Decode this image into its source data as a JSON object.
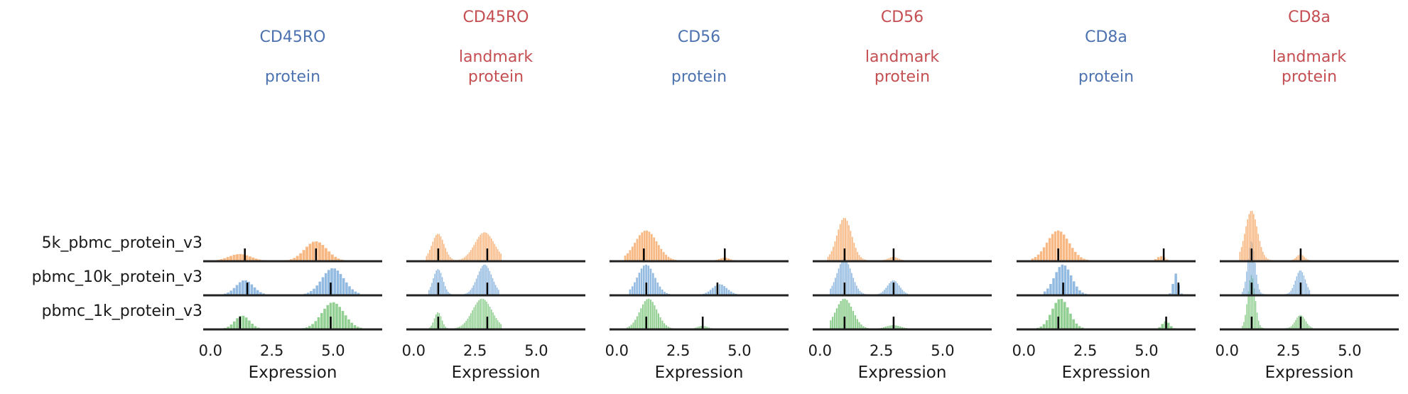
{
  "chart_data": {
    "type": "histogram-ridgeline",
    "colors": {
      "protein": "#4c72b0",
      "landmark": "#c44e52",
      "orange": "#f5a05a",
      "blue": "#6fa3d6",
      "green": "#6dbf6d",
      "marker": "#000000",
      "axis": "#222222"
    },
    "rows": [
      "5k_pbmc_protein_v3",
      "pbmc_10k_protein_v3",
      "pbmc_1k_protein_v3"
    ],
    "xticks": [
      "0.0",
      "2.5",
      "5.0"
    ],
    "xtick_values": [
      0,
      2.5,
      5
    ],
    "xlim": [
      -0.3,
      7.0
    ],
    "xlabel": "Expression",
    "panels": [
      {
        "title": "CD45RO\n\nprotein",
        "kind": "protein",
        "peaks": [
          [
            [
              1.2,
              0.45,
              0.35
            ],
            [
              4.3,
              0.45,
              1.0
            ]
          ],
          [
            [
              1.4,
              0.35,
              0.55
            ],
            [
              5.0,
              0.45,
              1.0
            ]
          ],
          [
            [
              1.3,
              0.3,
              0.5
            ],
            [
              5.0,
              0.45,
              1.0
            ]
          ]
        ],
        "ranges": [
          [
            0,
            6.2
          ],
          [
            0.3,
            6.1
          ],
          [
            0.3,
            6.2
          ]
        ],
        "heights": [
          0.55,
          0.75,
          0.75
        ],
        "markers": [
          [
            1.4,
            4.3
          ],
          [
            1.5,
            4.9
          ],
          [
            1.2,
            4.9
          ]
        ]
      },
      {
        "title": "CD45RO\n\nlandmark\nprotein",
        "kind": "landmark",
        "peaks": [
          [
            [
              1.0,
              0.25,
              0.95
            ],
            [
              2.9,
              0.4,
              1.0
            ]
          ],
          [
            [
              1.0,
              0.2,
              0.85
            ],
            [
              2.9,
              0.3,
              1.0
            ]
          ],
          [
            [
              1.0,
              0.15,
              0.55
            ],
            [
              2.8,
              0.4,
              1.0
            ]
          ]
        ],
        "ranges": [
          [
            0.5,
            3.6
          ],
          [
            0.6,
            3.5
          ],
          [
            0.5,
            3.6
          ]
        ],
        "heights": [
          0.8,
          0.85,
          0.85
        ],
        "markers": [
          [
            1.0,
            3.0
          ],
          [
            1.0,
            3.0
          ],
          [
            1.0,
            3.0
          ]
        ]
      },
      {
        "title": "CD56\n\nprotein",
        "kind": "protein",
        "peaks": [
          [
            [
              1.2,
              0.45,
              1.0
            ],
            [
              4.4,
              0.2,
              0.1
            ]
          ],
          [
            [
              1.2,
              0.35,
              1.0
            ],
            [
              4.2,
              0.3,
              0.35
            ]
          ],
          [
            [
              1.3,
              0.35,
              1.0
            ],
            [
              3.5,
              0.2,
              0.1
            ]
          ]
        ],
        "ranges": [
          [
            0.3,
            5.0
          ],
          [
            0.5,
            5.0
          ],
          [
            0.4,
            4.2
          ]
        ],
        "heights": [
          0.85,
          0.85,
          0.85
        ],
        "markers": [
          [
            1.1,
            4.4
          ],
          [
            1.2,
            4.1
          ],
          [
            1.2,
            3.5
          ]
        ]
      },
      {
        "title": "CD56\n\nlandmark\nprotein",
        "kind": "landmark",
        "peaks": [
          [
            [
              1.0,
              0.3,
              1.0
            ],
            [
              3.0,
              0.2,
              0.08
            ]
          ],
          [
            [
              1.0,
              0.3,
              1.0
            ],
            [
              3.0,
              0.25,
              0.4
            ]
          ],
          [
            [
              1.0,
              0.35,
              1.0
            ],
            [
              3.0,
              0.3,
              0.12
            ]
          ]
        ],
        "ranges": [
          [
            0.3,
            3.7
          ],
          [
            0.4,
            3.6
          ],
          [
            0.4,
            4.4
          ]
        ],
        "heights": [
          1.2,
          1.0,
          0.85
        ],
        "markers": [
          [
            1.0,
            3.0
          ],
          [
            1.0,
            3.0
          ],
          [
            1.0,
            3.0
          ]
        ]
      },
      {
        "title": "CD8a\n\nprotein",
        "kind": "protein",
        "peaks": [
          [
            [
              1.4,
              0.45,
              1.0
            ],
            [
              5.6,
              0.15,
              0.15
            ]
          ],
          [
            [
              1.6,
              0.35,
              1.0
            ],
            [
              6.2,
              0.1,
              0.7
            ]
          ],
          [
            [
              1.5,
              0.35,
              1.0
            ],
            [
              5.8,
              0.15,
              0.25
            ]
          ]
        ],
        "ranges": [
          [
            0.3,
            5.9
          ],
          [
            0.8,
            6.5
          ],
          [
            0.4,
            6.2
          ]
        ],
        "heights": [
          0.85,
          0.85,
          0.85
        ],
        "markers": [
          [
            1.4,
            5.7
          ],
          [
            1.6,
            6.3
          ],
          [
            1.4,
            5.8
          ]
        ]
      },
      {
        "title": "CD8a\n\nlandmark\nprotein",
        "kind": "landmark",
        "peaks": [
          [
            [
              1.0,
              0.25,
              1.0
            ],
            [
              3.0,
              0.15,
              0.12
            ]
          ],
          [
            [
              1.0,
              0.15,
              1.0
            ],
            [
              3.0,
              0.2,
              0.45
            ]
          ],
          [
            [
              1.0,
              0.15,
              1.0
            ],
            [
              3.0,
              0.2,
              0.25
            ]
          ]
        ],
        "ranges": [
          [
            0.5,
            3.5
          ],
          [
            0.6,
            3.4
          ],
          [
            0.6,
            3.5
          ]
        ],
        "heights": [
          1.4,
          1.5,
          1.5
        ],
        "markers": [
          [
            1.0,
            3.0
          ],
          [
            1.0,
            3.0
          ],
          [
            1.0,
            3.0
          ]
        ]
      }
    ]
  }
}
